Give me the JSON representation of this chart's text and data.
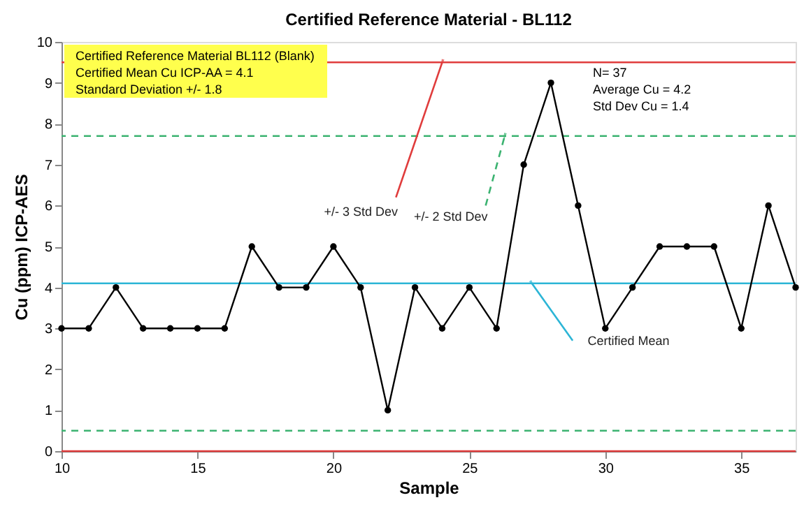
{
  "chart_data": {
    "type": "line",
    "title": "Certified Reference Material - BL112",
    "xlabel": "Sample",
    "ylabel": "Cu (ppm) ICP-AES",
    "x": [
      10,
      11,
      12,
      13,
      14,
      15,
      16,
      17,
      18,
      19,
      20,
      21,
      22,
      23,
      24,
      25,
      26,
      27,
      28,
      29,
      30,
      31,
      32,
      33,
      34,
      35,
      36,
      37
    ],
    "series": [
      {
        "color": "#000000",
        "values": [
          3,
          3,
          4,
          3,
          3,
          3,
          3,
          5,
          4,
          4,
          5,
          4,
          1,
          4,
          3,
          4,
          3,
          7,
          9,
          6,
          3,
          4,
          5,
          5,
          5,
          3,
          6,
          4
        ]
      }
    ],
    "xlim": [
      10,
      37
    ],
    "xticks": [
      10,
      15,
      20,
      25,
      30,
      35
    ],
    "ylim": [
      0,
      10
    ],
    "yticks": [
      0,
      1,
      2,
      3,
      4,
      5,
      6,
      7,
      8,
      9,
      10
    ],
    "ref_lines": [
      {
        "axis": "y",
        "value": 9.5,
        "color": "#e03c3c",
        "line_style": "solid"
      },
      {
        "axis": "y",
        "value": 0,
        "color": "#e03c3c",
        "line_style": "solid"
      },
      {
        "axis": "y",
        "value": 7.7,
        "color": "#3cb371",
        "line_style": "dashed"
      },
      {
        "axis": "y",
        "value": 0.5,
        "color": "#3cb371",
        "line_style": "dashed"
      },
      {
        "axis": "y",
        "value": 4.1,
        "color": "#2cb5d6",
        "line_style": "solid"
      }
    ],
    "annotations": [
      "Certified Reference Material BL112  (Blank)",
      "Certified Mean Cu ICP-AA = 4.1",
      "Standard Deviation  +/- 1.8",
      "N= 37",
      "Average Cu = 4.2",
      "Std Dev Cu = 1.4",
      {
        "text": "+/- 3 Std Dev",
        "x": 24,
        "y": 9.5
      },
      {
        "text": "+/- 2 Std Dev",
        "x": 26.3,
        "y": 7.7
      },
      {
        "text": "Certified Mean",
        "x": 27.3,
        "y": 4.1
      }
    ],
    "marker": "circle",
    "line_style": "solid",
    "grid": false
  }
}
